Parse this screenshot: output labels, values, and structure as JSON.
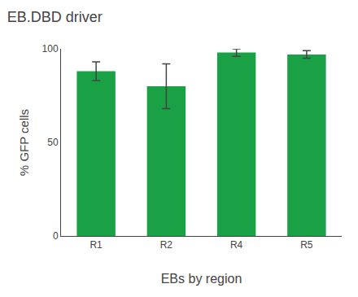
{
  "chart_data": {
    "type": "bar",
    "title": "EB.DBD driver",
    "xlabel": "EBs by region",
    "ylabel": "% GFP cells",
    "categories": [
      "R1",
      "R2",
      "R4",
      "R5"
    ],
    "values": [
      88,
      80,
      98,
      97
    ],
    "errors": [
      5,
      12,
      2,
      2
    ],
    "color": "#1aA045",
    "ylim": [
      0,
      100
    ],
    "yticks": [
      0,
      50,
      100
    ],
    "grid": false
  }
}
